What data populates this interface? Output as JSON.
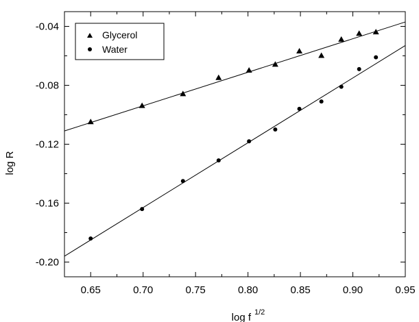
{
  "chart_data": {
    "type": "scatter",
    "xlabel": "log f",
    "xlabel_superscript": "1/2",
    "ylabel": "log R",
    "xlim": [
      0.625,
      0.95
    ],
    "ylim": [
      -0.21,
      -0.03
    ],
    "x_ticks": [
      0.65,
      0.7,
      0.75,
      0.8,
      0.85,
      0.9,
      0.95
    ],
    "x_tick_labels": [
      "0.65",
      "0.70",
      "0.75",
      "0.80",
      "0.85",
      "0.90",
      "0.95"
    ],
    "y_ticks": [
      -0.04,
      -0.08,
      -0.12,
      -0.16,
      -0.2
    ],
    "y_tick_labels": [
      "-0.04",
      "-0.08",
      "-0.12",
      "-0.16",
      "-0.20"
    ],
    "grid": false,
    "legend_position": "top-left",
    "series": [
      {
        "name": "Glycerol",
        "marker": "triangle",
        "x": [
          0.65,
          0.699,
          0.738,
          0.772,
          0.801,
          0.826,
          0.849,
          0.87,
          0.889,
          0.906,
          0.922
        ],
        "y": [
          -0.105,
          -0.094,
          -0.086,
          -0.075,
          -0.07,
          -0.066,
          -0.057,
          -0.06,
          -0.049,
          -0.045,
          -0.044
        ],
        "fit_line": {
          "x": [
            0.625,
            0.95
          ],
          "y": [
            -0.111,
            -0.037
          ]
        }
      },
      {
        "name": "Water",
        "marker": "circle",
        "x": [
          0.65,
          0.699,
          0.738,
          0.772,
          0.801,
          0.826,
          0.849,
          0.87,
          0.889,
          0.906,
          0.922
        ],
        "y": [
          -0.184,
          -0.164,
          -0.145,
          -0.131,
          -0.118,
          -0.11,
          -0.096,
          -0.091,
          -0.081,
          -0.069,
          -0.061
        ],
        "fit_line": {
          "x": [
            0.625,
            0.95
          ],
          "y": [
            -0.196,
            -0.053
          ]
        }
      }
    ]
  },
  "colors": {
    "ink": "#000000",
    "background": "#ffffff"
  }
}
